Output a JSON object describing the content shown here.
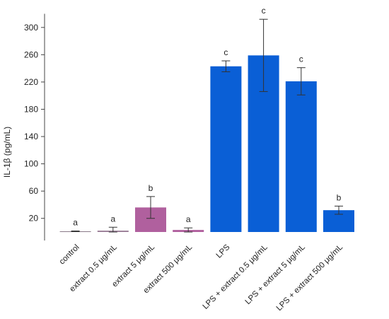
{
  "chart_data": {
    "type": "bar",
    "title": "",
    "xlabel": "",
    "ylabel": "IL-1β (pg/mL)",
    "ylim": [
      0,
      320
    ],
    "yticks": [
      20,
      60,
      100,
      140,
      180,
      220,
      260,
      300
    ],
    "grid": false,
    "categories": [
      "control",
      "extract 0.5 μg/mL",
      "extract 5 μg/mL",
      "extract 500 μg/mL",
      "LPS",
      "LPS + extract 0.5 μg/mL",
      "LPS + extract 5 μg/mL",
      "LPS + extract 500 μg/mL"
    ],
    "values": [
      1,
      2,
      36,
      3,
      243,
      259,
      221,
      32
    ],
    "errors": [
      0.5,
      5,
      16,
      3,
      8,
      53,
      20,
      6
    ],
    "significance": [
      "a",
      "a",
      "b",
      "a",
      "c",
      "c",
      "c",
      "b"
    ],
    "colors": [
      "#8a7a88",
      "#9b7f98",
      "#b0609e",
      "#b0609e",
      "#0a5fd6",
      "#0a5fd6",
      "#0a5fd6",
      "#0a5fd6"
    ]
  }
}
